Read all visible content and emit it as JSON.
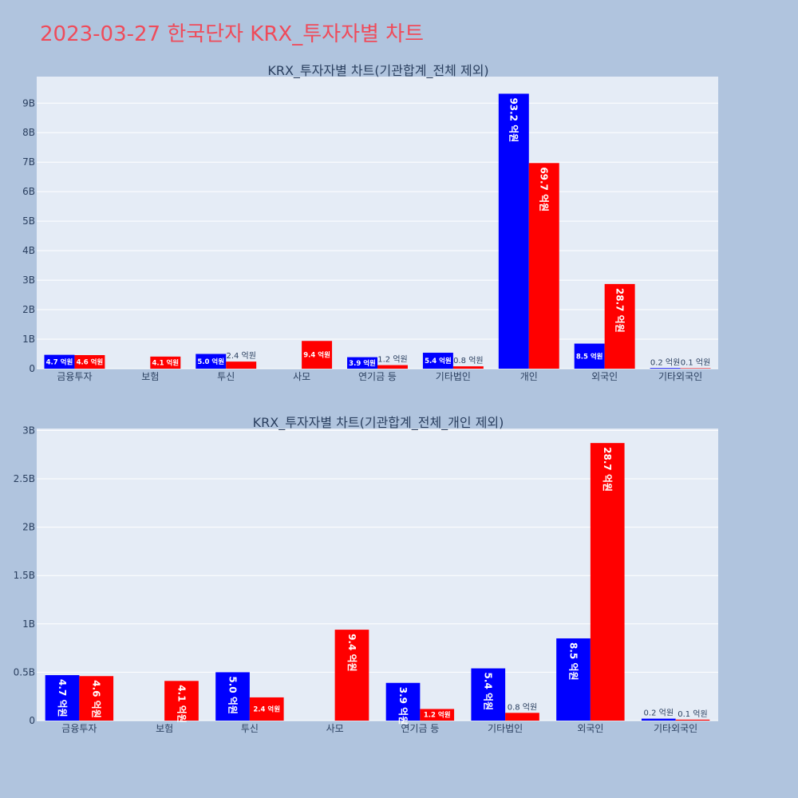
{
  "page": {
    "title": "2023-03-27 한국단자 KRX_투자자별 차트"
  },
  "colors": {
    "buy": "#0000ff",
    "sell": "#ff0000",
    "page_background": "#b0c4de",
    "plot_background": "#e5ecf6",
    "title": "#ef4b5a"
  },
  "chart_data": [
    {
      "type": "bar",
      "title": "KRX_투자자별 차트(기관합계_전체 제외)",
      "categories": [
        "금융투자",
        "보험",
        "투신",
        "사모",
        "연기금 등",
        "기타법인",
        "개인",
        "외국인",
        "기타외국인"
      ],
      "ylim": [
        0,
        9.9
      ],
      "y_ticks": [
        0,
        1,
        2,
        3,
        4,
        5,
        6,
        7,
        8,
        9
      ],
      "y_tick_labels": [
        "0",
        "1B",
        "2B",
        "3B",
        "4B",
        "5B",
        "6B",
        "7B",
        "8B",
        "9B"
      ],
      "grid": true,
      "series": [
        {
          "color": "#0000ff",
          "values": [
            0.47,
            null,
            0.5,
            null,
            0.39,
            0.54,
            9.32,
            0.85,
            0.02
          ],
          "labels": [
            "4.7 억원",
            "",
            "5.0 억원",
            "",
            "3.9 억원",
            "5.4 억원",
            "93.2 억원",
            "8.5 억원",
            "0.2 억원"
          ]
        },
        {
          "color": "#ff0000",
          "values": [
            0.46,
            0.41,
            0.24,
            0.94,
            0.12,
            0.08,
            6.97,
            2.87,
            0.01
          ],
          "labels": [
            "4.6 억원",
            "4.1 억원",
            "2.4 억원",
            "9.4 억원",
            "1.2 억원",
            "0.8 억원",
            "69.7 억원",
            "28.7 억원",
            "0.1 억원"
          ]
        }
      ]
    },
    {
      "type": "bar",
      "title": "KRX_투자자별 차트(기관합계_전체_개인 제외)",
      "categories": [
        "금융투자",
        "보험",
        "투신",
        "사모",
        "연기금 등",
        "기타법인",
        "외국인",
        "기타외국인"
      ],
      "ylim": [
        0,
        3.02
      ],
      "y_ticks": [
        0,
        0.5,
        1,
        1.5,
        2,
        2.5,
        3
      ],
      "y_tick_labels": [
        "0",
        "0.5B",
        "1B",
        "1.5B",
        "2B",
        "2.5B",
        "3B"
      ],
      "grid": true,
      "series": [
        {
          "color": "#0000ff",
          "values": [
            0.47,
            null,
            0.5,
            null,
            0.39,
            0.54,
            0.85,
            0.02
          ],
          "labels": [
            "4.7 억원",
            "",
            "5.0 억원",
            "",
            "3.9 억원",
            "5.4 억원",
            "8.5 억원",
            "0.2 억원"
          ]
        },
        {
          "color": "#ff0000",
          "values": [
            0.46,
            0.41,
            0.24,
            0.94,
            0.12,
            0.08,
            2.87,
            0.01
          ],
          "labels": [
            "4.6 억원",
            "4.1 억원",
            "2.4 억원",
            "9.4 억원",
            "1.2 억원",
            "0.8 억원",
            "28.7 억원",
            "0.1 억원"
          ]
        }
      ]
    }
  ]
}
